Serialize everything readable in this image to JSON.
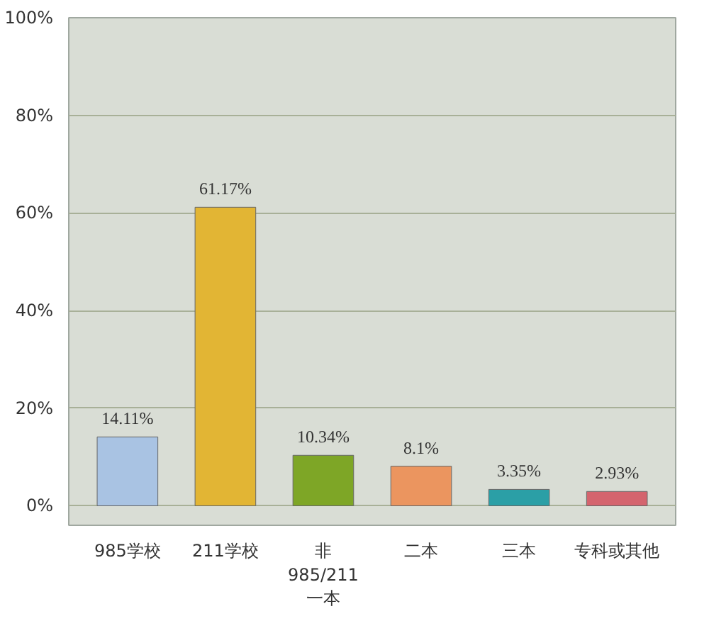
{
  "chart_data": {
    "type": "bar",
    "categories": [
      "985学校",
      "211学校",
      "非\n985/211\n一本",
      "二本",
      "三本",
      "专科或其他"
    ],
    "values": [
      14.11,
      61.17,
      10.34,
      8.1,
      3.35,
      2.93
    ],
    "colors": [
      "#a9c3e3",
      "#e2b534",
      "#7ea626",
      "#eb955f",
      "#2b9fa6",
      "#d4646e"
    ],
    "value_labels": [
      "14.11%",
      "61.17%",
      "10.34%",
      "8.1%",
      "3.35%",
      "2.93%"
    ],
    "ylim": [
      -4,
      100
    ],
    "yticks": [
      {
        "value": 0,
        "label": "0%"
      },
      {
        "value": 20,
        "label": "20%"
      },
      {
        "value": 40,
        "label": "40%"
      },
      {
        "value": 60,
        "label": "60%"
      },
      {
        "value": 80,
        "label": "80%"
      },
      {
        "value": 100,
        "label": "100%"
      }
    ],
    "grid": "y"
  }
}
